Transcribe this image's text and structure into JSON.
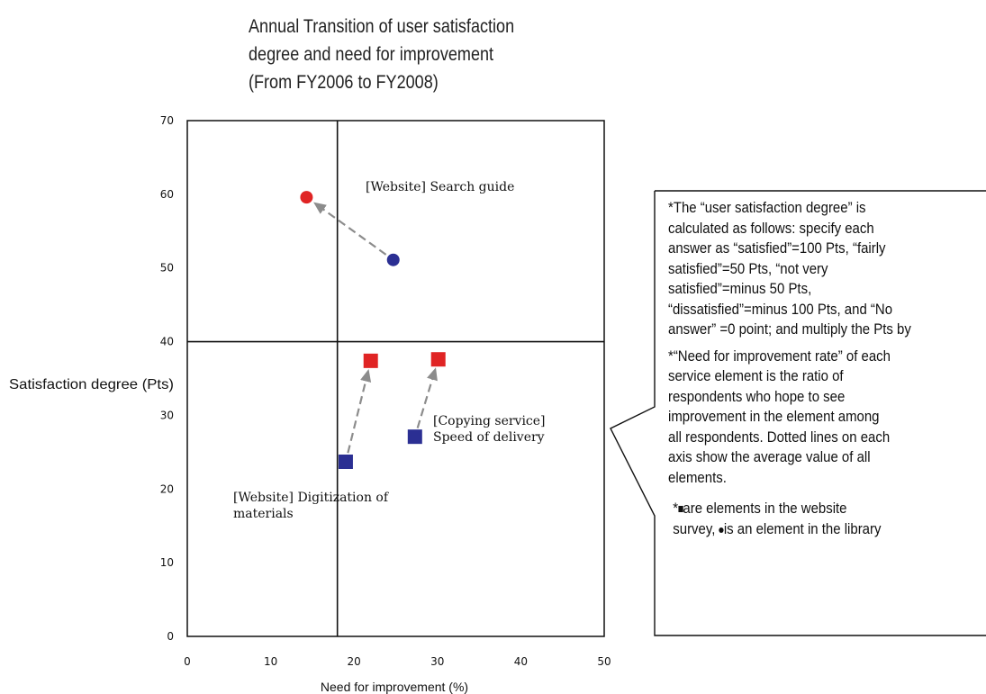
{
  "chart_data": {
    "type": "scatter",
    "title_lines": [
      "Annual Transition of user satisfaction",
      "degree and need for improvement",
      "(From FY2006 to FY2008)"
    ],
    "xlabel": "Need for improvement (%)",
    "ylabel": "Satisfaction degree (Pts)",
    "xlim": [
      0,
      50
    ],
    "ylim": [
      0,
      70
    ],
    "x_ticks": [
      "0",
      "10",
      "20",
      "30",
      "40",
      "50"
    ],
    "y_ticks": [
      "0",
      "10",
      "20",
      "30",
      "40",
      "50",
      "60",
      "70"
    ],
    "reference_lines": {
      "x": 18,
      "y": 40
    },
    "colors": {
      "earlier": "#2b2f93",
      "later": "#e02424",
      "arrow": "#8c8c8c"
    },
    "elements": [
      {
        "label_lines": [
          "[Website] Search guide"
        ],
        "marker": "circle",
        "from": {
          "x": 24.7,
          "y": 51.1
        },
        "to": {
          "x": 14.3,
          "y": 59.6
        }
      },
      {
        "label_lines": [
          "[Copying service]",
          "Speed of delivery"
        ],
        "marker": "square",
        "from": {
          "x": 27.3,
          "y": 27.1
        },
        "to": {
          "x": 30.1,
          "y": 37.6
        }
      },
      {
        "label_lines": [
          "[Website] Digitization of",
          "materials"
        ],
        "marker": "square",
        "from": {
          "x": 19.0,
          "y": 23.7
        },
        "to": {
          "x": 22.0,
          "y": 37.4
        }
      }
    ]
  },
  "notes": {
    "satisfaction_lines": [
      "*The “user satisfaction degree” is",
      "calculated as follows: specify each",
      "answer as “satisfied”=100 Pts, “fairly",
      "satisfied”=50 Pts, “not very",
      "satisfied”=minus 50 Pts,",
      "“dissatisfied”=minus 100 Pts, and “No",
      "answer” =0 point; and multiply the Pts by"
    ],
    "improvement_lines": [
      "*“Need for improvement rate” of each",
      "service element is the ratio of",
      "respondents who hope to see",
      "improvement in the element among",
      "all respondents. Dotted lines on each",
      "axis show the average value of all",
      "elements."
    ],
    "legend_line1_prefix": "*",
    "legend_line1_text": "are elements in the website",
    "legend_line2_text": "survey, ",
    "legend_line2_rest": "is an element in the library"
  }
}
